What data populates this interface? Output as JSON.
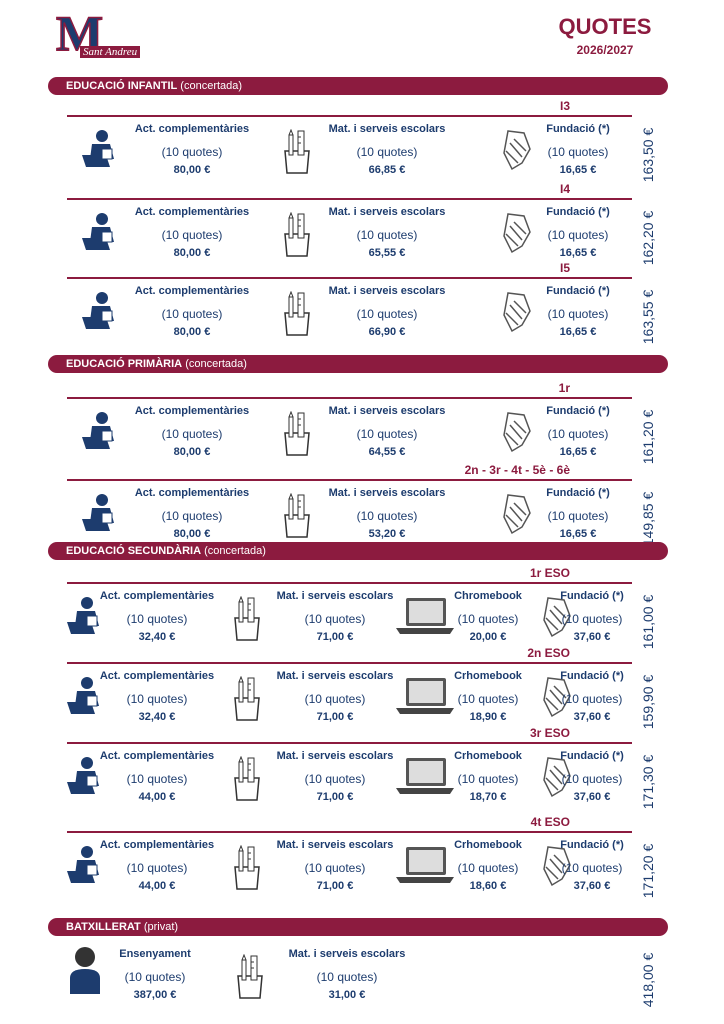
{
  "header": {
    "logo_letter": "M",
    "logo_text": "Sant Andreu",
    "title": "QUOTES",
    "year": "2026/2027"
  },
  "sections": [
    {
      "title": "EDUCACIÓ INFANTIL",
      "subtitle": "(concertada)",
      "groups": [
        {
          "label": "I3",
          "total": "163,50 €",
          "items": [
            {
              "name": "Act. complementàries",
              "count": "(10 quotes)",
              "amount": "80,00 €"
            },
            {
              "name": "Mat. i serveis escolars",
              "count": "(10 quotes)",
              "amount": "66,85 €"
            },
            {
              "name": "Fundació (*)",
              "count": "(10 quotes)",
              "amount": "16,65 €"
            }
          ]
        },
        {
          "label": "I4",
          "total": "162,20 €",
          "items": [
            {
              "name": "Act. complementàries",
              "count": "(10 quotes)",
              "amount": "80,00 €"
            },
            {
              "name": "Mat. i serveis escolars",
              "count": "(10 quotes)",
              "amount": "65,55 €"
            },
            {
              "name": "Fundació (*)",
              "count": "(10 quotes)",
              "amount": "16,65 €"
            }
          ]
        },
        {
          "label": "I5",
          "total": "163,55 €",
          "items": [
            {
              "name": "Act. complementàries",
              "count": "(10 quotes)",
              "amount": "80,00 €"
            },
            {
              "name": "Mat. i serveis escolars",
              "count": "(10 quotes)",
              "amount": "66,90 €"
            },
            {
              "name": "Fundació (*)",
              "count": "(10 quotes)",
              "amount": "16,65 €"
            }
          ]
        }
      ]
    },
    {
      "title": "EDUCACIÓ PRIMÀRIA",
      "subtitle": "(concertada)",
      "groups": [
        {
          "label": "1r",
          "total": "161,20 €",
          "items": [
            {
              "name": "Act. complementàries",
              "count": "(10 quotes)",
              "amount": "80,00 €"
            },
            {
              "name": "Mat. i serveis escolars",
              "count": "(10 quotes)",
              "amount": "64,55 €"
            },
            {
              "name": "Fundació (*)",
              "count": "(10 quotes)",
              "amount": "16,65 €"
            }
          ]
        },
        {
          "label": "2n - 3r - 4t - 5è - 6è",
          "total": "149,85 €",
          "items": [
            {
              "name": "Act. complementàries",
              "count": "(10 quotes)",
              "amount": "80,00 €"
            },
            {
              "name": "Mat. i serveis escolars",
              "count": "(10 quotes)",
              "amount": "53,20 €"
            },
            {
              "name": "Fundació (*)",
              "count": "(10 quotes)",
              "amount": "16,65 €"
            }
          ]
        }
      ]
    },
    {
      "title": "EDUCACIÓ SECUNDÀRIA",
      "subtitle": "(concertada)",
      "groups": [
        {
          "label": "1r ESO",
          "total": "161,00 €",
          "items": [
            {
              "name": "Act. complementàries",
              "count": "(10 quotes)",
              "amount": "32,40 €"
            },
            {
              "name": "Mat. i serveis escolars",
              "count": "(10 quotes)",
              "amount": "71,00 €"
            },
            {
              "name": "Chromebook",
              "count": "(10 quotes)",
              "amount": "20,00 €"
            },
            {
              "name": "Fundació (*)",
              "count": "(10 quotes)",
              "amount": "37,60 €"
            }
          ]
        },
        {
          "label": "2n ESO",
          "total": "159,90 €",
          "items": [
            {
              "name": "Act. complementàries",
              "count": "(10 quotes)",
              "amount": "32,40 €"
            },
            {
              "name": "Mat. i serveis escolars",
              "count": "(10 quotes)",
              "amount": "71,00 €"
            },
            {
              "name": "Crhomebook",
              "count": "(10 quotes)",
              "amount": "18,90 €"
            },
            {
              "name": "Fundació (*)",
              "count": "(10 quotes)",
              "amount": "37,60 €"
            }
          ]
        },
        {
          "label": "3r ESO",
          "total": "171,30 €",
          "items": [
            {
              "name": "Act. complementàries",
              "count": "(10 quotes)",
              "amount": "44,00 €"
            },
            {
              "name": "Mat. i serveis escolars",
              "count": "(10 quotes)",
              "amount": "71,00 €"
            },
            {
              "name": "Crhomebook",
              "count": "(10 quotes)",
              "amount": "18,70 €"
            },
            {
              "name": "Fundació (*)",
              "count": "(10 quotes)",
              "amount": "37,60 €"
            }
          ]
        },
        {
          "label": "4t ESO",
          "total": "171,20 €",
          "items": [
            {
              "name": "Act. complementàries",
              "count": "(10 quotes)",
              "amount": "44,00 €"
            },
            {
              "name": "Mat. i serveis escolars",
              "count": "(10 quotes)",
              "amount": "71,00 €"
            },
            {
              "name": "Crhomebook",
              "count": "(10 quotes)",
              "amount": "18,60 €"
            },
            {
              "name": "Fundació (*)",
              "count": "(10 quotes)",
              "amount": "37,60 €"
            }
          ]
        }
      ]
    },
    {
      "title": "BATXILLERAT",
      "subtitle": "(privat)",
      "groups": [
        {
          "total": "418,00 €",
          "items": [
            {
              "name": "Ensenyament",
              "count": "(10 quotes)",
              "amount": "387,00 €"
            },
            {
              "name": "Mat. i serveis escolars",
              "count": "(10 quotes)",
              "amount": "31,00 €"
            }
          ]
        }
      ]
    }
  ]
}
